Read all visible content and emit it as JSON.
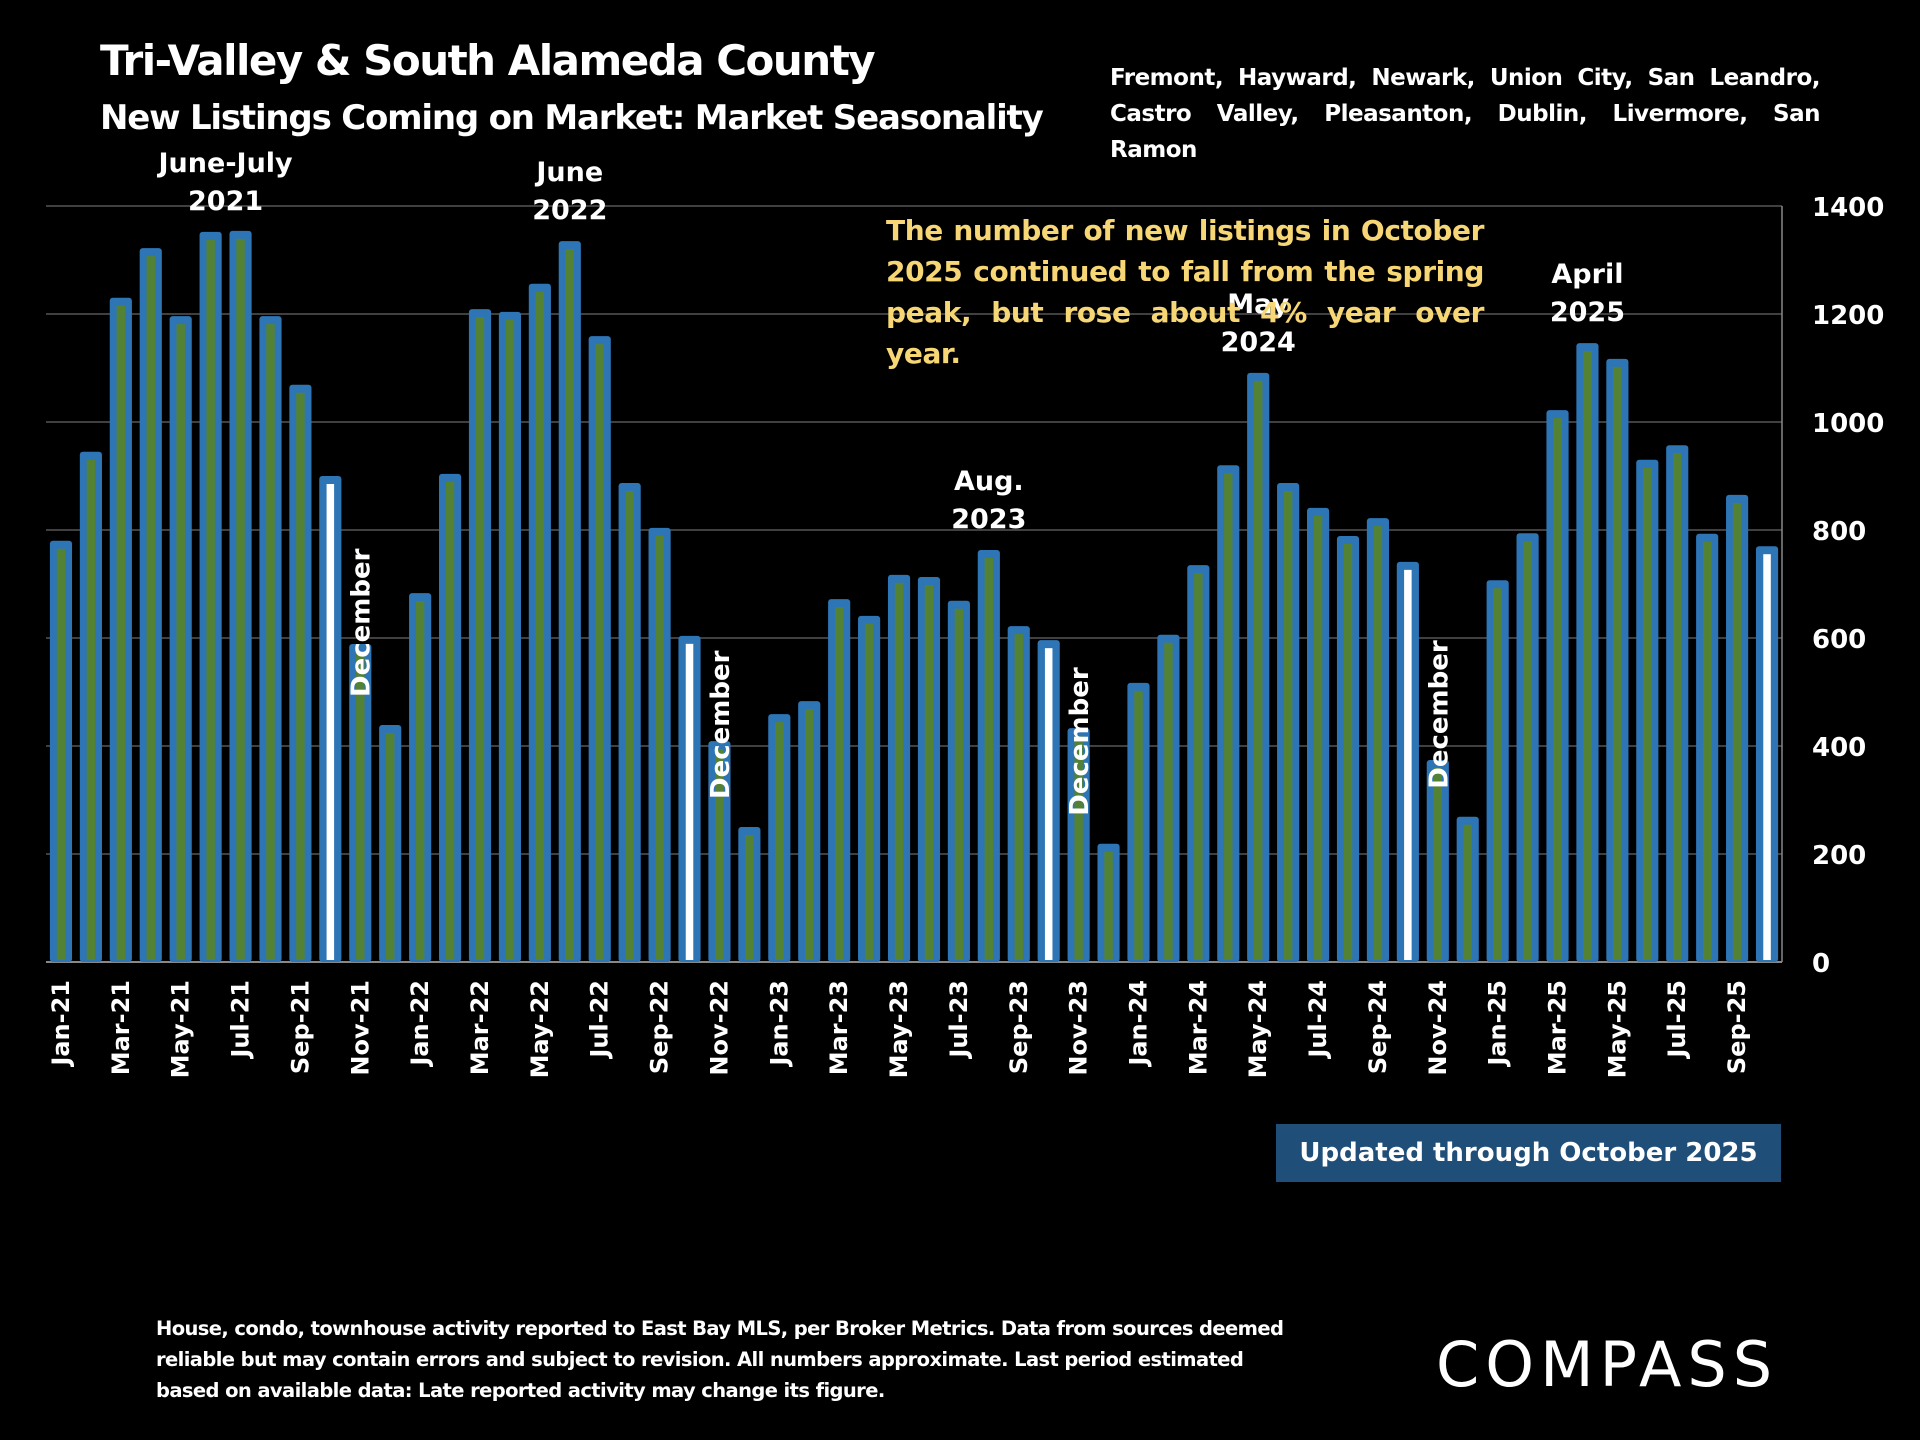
{
  "header": {
    "title": "Tri-Valley & South Alameda County",
    "subtitle": "New Listings Coming on Market: Market Seasonality",
    "cities": "Fremont, Hayward, Newark, Union City, San Leandro, Castro Valley, Pleasanton, Dublin, Livermore, San Ramon"
  },
  "callout": "The number of new listings in October 2025 continued to fall from the spring peak, but rose about 4% year over year.",
  "updated_banner": "Updated through October 2025",
  "footnote": "House, condo, townhouse activity reported to East Bay MLS, per Broker Metrics. Data from sources deemed reliable but may contain errors and subject to revision. All numbers approximate. Last period estimated based on available data: Late reported activity may change its figure.",
  "logo": "COMPASS",
  "colors": {
    "bar_outline": "#2e75b6",
    "bar_fill": "#548235",
    "october_fill": "#ffffff",
    "background": "#000000",
    "callout_text": "#f7d775",
    "banner_bg": "#1f4e79"
  },
  "chart_data": {
    "type": "bar",
    "title": "New Listings Coming on Market: Market Seasonality",
    "xlabel": "",
    "ylabel": "",
    "ylim": [
      0,
      1400
    ],
    "yticks": [
      0,
      200,
      400,
      600,
      800,
      1000,
      1200,
      1400
    ],
    "y_axis_side": "right",
    "grid": true,
    "categories": [
      "Jan-21",
      "Feb-21",
      "Mar-21",
      "Apr-21",
      "May-21",
      "Jun-21",
      "Jul-21",
      "Aug-21",
      "Sep-21",
      "Oct-21",
      "Nov-21",
      "Dec-21",
      "Jan-22",
      "Feb-22",
      "Mar-22",
      "Apr-22",
      "May-22",
      "Jun-22",
      "Jul-22",
      "Aug-22",
      "Sep-22",
      "Oct-22",
      "Nov-22",
      "Dec-22",
      "Jan-23",
      "Feb-23",
      "Mar-23",
      "Apr-23",
      "May-23",
      "Jun-23",
      "Jul-23",
      "Aug-23",
      "Sep-23",
      "Oct-23",
      "Nov-23",
      "Dec-23",
      "Jan-24",
      "Feb-24",
      "Mar-24",
      "Apr-24",
      "May-24",
      "Jun-24",
      "Jul-24",
      "Aug-24",
      "Sep-24",
      "Oct-24",
      "Nov-24",
      "Dec-24",
      "Jan-25",
      "Feb-25",
      "Mar-25",
      "Apr-25",
      "May-25",
      "Jun-25",
      "Jul-25",
      "Aug-25",
      "Sep-25",
      "Oct-25"
    ],
    "tick_labels": [
      "Jan-21",
      "Mar-21",
      "May-21",
      "Jul-21",
      "Sep-21",
      "Nov-21",
      "Jan-22",
      "Mar-22",
      "May-22",
      "Jul-22",
      "Sep-22",
      "Nov-22",
      "Jan-23",
      "Mar-23",
      "May-23",
      "Jul-23",
      "Sep-23",
      "Nov-23",
      "Jan-24",
      "Mar-24",
      "May-24",
      "Jul-24",
      "Sep-24",
      "Nov-24",
      "Jan-25",
      "Mar-25",
      "May-25",
      "Jul-25",
      "Sep-25"
    ],
    "values": [
      780,
      945,
      1230,
      1322,
      1196,
      1352,
      1354,
      1196,
      1069,
      900,
      589,
      439,
      683,
      904,
      1209,
      1204,
      1256,
      1335,
      1159,
      887,
      804,
      604,
      409,
      250,
      459,
      483,
      672,
      641,
      717,
      713,
      669,
      763,
      622,
      596,
      433,
      219,
      517,
      606,
      735,
      920,
      1091,
      887,
      841,
      789,
      822,
      741,
      374,
      269,
      707,
      794,
      1022,
      1146,
      1117,
      930,
      957,
      793,
      865,
      770
    ],
    "highlighted_months": [
      "Oct-21",
      "Oct-22",
      "Oct-23",
      "Oct-24",
      "Oct-25"
    ],
    "annotations": [
      {
        "text_lines": [
          "June-July",
          "2021"
        ],
        "at": "Jun-21",
        "orientation": "horizontal"
      },
      {
        "text_lines": [
          "June",
          "2022"
        ],
        "at": "Jun-22",
        "orientation": "horizontal"
      },
      {
        "text_lines": [
          "Aug.",
          "2023"
        ],
        "at": "Aug-23",
        "orientation": "horizontal"
      },
      {
        "text_lines": [
          "May",
          "2024"
        ],
        "at": "May-24",
        "orientation": "horizontal"
      },
      {
        "text_lines": [
          "April",
          "2025"
        ],
        "at": "Apr-25",
        "orientation": "horizontal"
      },
      {
        "text_lines": [
          "December"
        ],
        "at": "Dec-21",
        "orientation": "vertical"
      },
      {
        "text_lines": [
          "December"
        ],
        "at": "Dec-22",
        "orientation": "vertical"
      },
      {
        "text_lines": [
          "December"
        ],
        "at": "Dec-23",
        "orientation": "vertical"
      },
      {
        "text_lines": [
          "December"
        ],
        "at": "Dec-24",
        "orientation": "vertical"
      }
    ]
  }
}
